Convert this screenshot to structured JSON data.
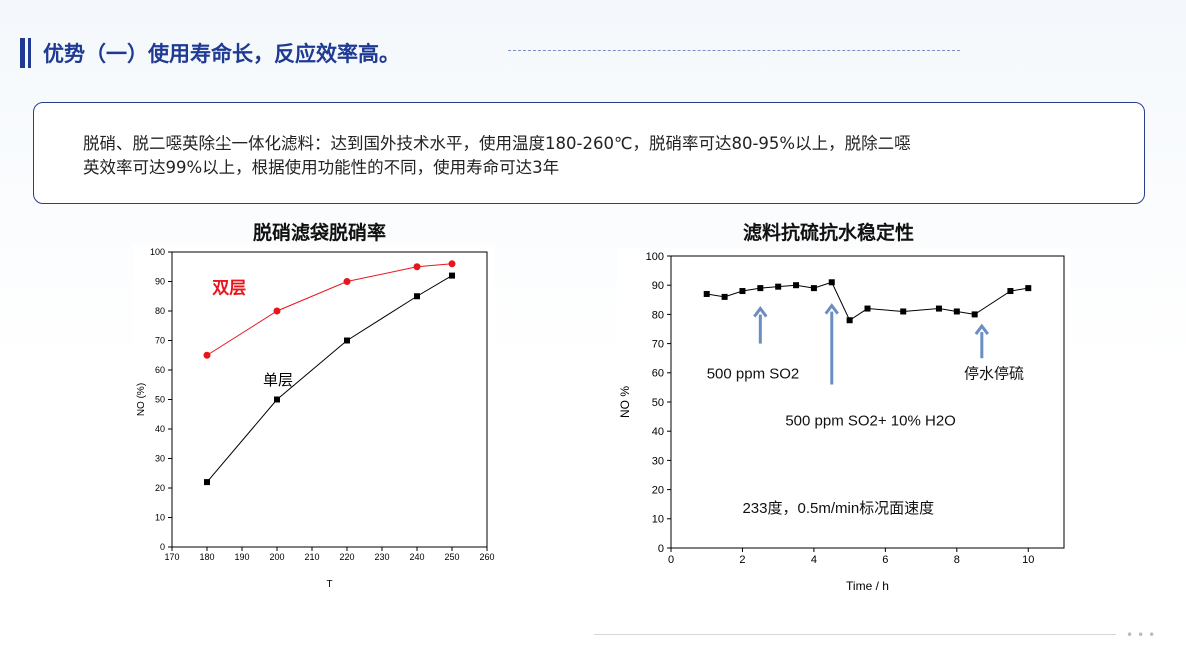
{
  "header": {
    "title": "优势（一）使用寿命长，反应效率高。"
  },
  "description": {
    "line1": "脱硝、脱二噁英除尘一体化滤料：达到国外技术水平，使用温度180-260℃，脱硝率可达80-95%以上，脱除二噁",
    "line2": "英效率可达99%以上，根据使用功能性的不同，使用寿命可达3年"
  },
  "chart_data": [
    {
      "type": "line",
      "title": "脱硝滤袋脱硝率",
      "xlabel": "T",
      "ylabel": "NO (%)",
      "xlim": [
        170,
        260
      ],
      "ylim": [
        0,
        100
      ],
      "xticks": [
        170,
        180,
        190,
        200,
        210,
        220,
        230,
        240,
        250,
        260
      ],
      "yticks": [
        0,
        10,
        20,
        30,
        40,
        50,
        60,
        70,
        80,
        90,
        100
      ],
      "series": [
        {
          "name": "双层",
          "color": "#e8161c",
          "x": [
            180,
            200,
            220,
            240,
            250
          ],
          "y": [
            65,
            80,
            90,
            95,
            96
          ]
        },
        {
          "name": "单层",
          "color": "#000000",
          "x": [
            180,
            200,
            220,
            240,
            250
          ],
          "y": [
            22,
            50,
            70,
            85,
            92
          ]
        }
      ],
      "annotations": [
        {
          "text": "双层",
          "x": 181.5,
          "y": 86,
          "color": "#e8161c"
        },
        {
          "text": "单层",
          "x": 196,
          "y": 55,
          "color": "#000000"
        }
      ]
    },
    {
      "type": "line",
      "title": "滤料抗硫抗水稳定性",
      "xlabel": "Time / h",
      "ylabel": "NO %",
      "xlim": [
        0,
        11
      ],
      "ylim": [
        0,
        100
      ],
      "xticks": [
        0,
        2,
        4,
        6,
        8,
        10
      ],
      "yticks": [
        0,
        10,
        20,
        30,
        40,
        50,
        60,
        70,
        80,
        90,
        100
      ],
      "series": [
        {
          "color": "#000000",
          "x": [
            1,
            1.5,
            2,
            2.5,
            3,
            3.5,
            4,
            4.5,
            5,
            5.5,
            6.5,
            7.5,
            8,
            8.5,
            9.5,
            10
          ],
          "y": [
            87,
            86,
            88,
            89,
            89.5,
            90,
            89,
            91,
            78,
            82,
            81,
            82,
            81,
            80,
            88,
            89
          ]
        }
      ],
      "arrows": [
        {
          "x": 2.5,
          "y_tail": 70,
          "y_head": 82,
          "color": "#6b8ec2"
        },
        {
          "x": 4.5,
          "y_tail": 56,
          "y_head": 83,
          "color": "#6b8ec2"
        },
        {
          "x": 8.7,
          "y_tail": 65,
          "y_head": 76,
          "color": "#6b8ec2"
        }
      ],
      "annotations": [
        {
          "text": "500 ppm SO2",
          "x": 1.0,
          "y": 58
        },
        {
          "text": "500 ppm SO2+ 10% H2O",
          "x": 3.2,
          "y": 42
        },
        {
          "text": "停水停硫",
          "x": 8.2,
          "y": 58
        },
        {
          "text": "233度，0.5m/min标况面速度",
          "x": 2.0,
          "y": 12
        }
      ]
    }
  ]
}
